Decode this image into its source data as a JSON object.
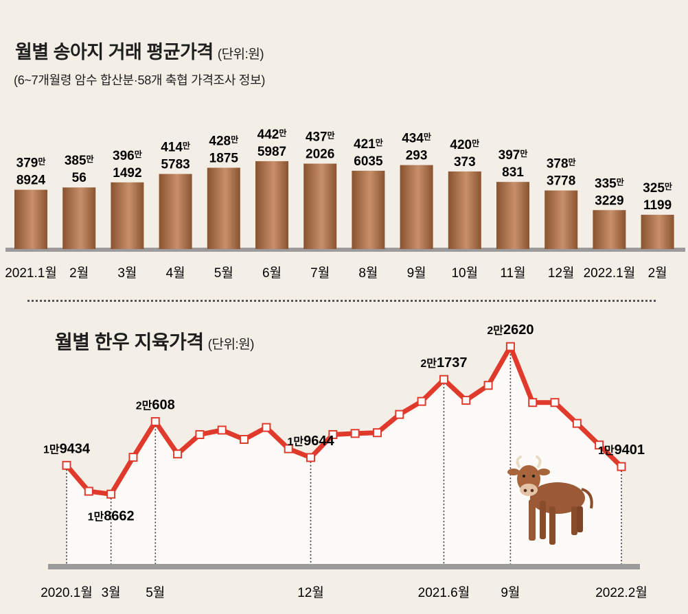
{
  "bar_section": {
    "title": "월별 송아지 거래 평균가격",
    "unit": "(단위:원)",
    "subtitle": "(6~7개월령 암수 합산분·58개 축협 가격조사 정보)"
  },
  "line_section": {
    "title": "월별 한우 지육가격",
    "unit": "(단위:원)"
  },
  "colors": {
    "background": "#f3eee6",
    "bar_light": "#c7906a",
    "bar_dark": "#8a5330",
    "line": "#e03a2c",
    "baseline": "#9b9b9b"
  },
  "icons": [
    "cow-icon"
  ],
  "chart_data": [
    {
      "type": "bar",
      "title": "월별 송아지 거래 평균가격",
      "unit": "원",
      "categories": [
        "2021.1월",
        "2월",
        "3월",
        "4월",
        "5월",
        "6월",
        "7월",
        "8월",
        "9월",
        "10월",
        "11월",
        "12월",
        "2022.1월",
        "2월"
      ],
      "values": [
        3798924,
        3850056,
        3961492,
        4145783,
        4281875,
        4425987,
        4372026,
        4216035,
        4340293,
        4200373,
        3970831,
        3783778,
        3353229,
        3251199
      ],
      "labels_top": [
        "379만",
        "385만",
        "396만",
        "414만",
        "428만",
        "442만",
        "437만",
        "421만",
        "434만",
        "420만",
        "397만",
        "378만",
        "335만",
        "325만"
      ],
      "labels_bottom": [
        "8924",
        "56",
        "1492",
        "5783",
        "1875",
        "5987",
        "2026",
        "6035",
        "293",
        "373",
        "831",
        "3778",
        "3229",
        "1199"
      ],
      "ylim": [
        2500000,
        4500000
      ]
    },
    {
      "type": "line",
      "title": "월별 한우 지육가격",
      "unit": "원",
      "x": [
        "2020.1",
        "2020.2",
        "2020.3",
        "2020.4",
        "2020.5",
        "2020.6",
        "2020.7",
        "2020.8",
        "2020.9",
        "2020.10",
        "2020.11",
        "2020.12",
        "2021.1",
        "2021.2",
        "2021.3",
        "2021.4",
        "2021.5",
        "2021.6",
        "2021.7",
        "2021.8",
        "2021.9",
        "2021.10",
        "2021.11",
        "2021.12",
        "2022.1",
        "2022.2"
      ],
      "values": [
        19434,
        18740,
        18662,
        19650,
        20608,
        19740,
        20260,
        20380,
        20130,
        20450,
        19880,
        19644,
        20260,
        20290,
        20310,
        20800,
        21150,
        21737,
        21180,
        21580,
        22620,
        21120,
        21120,
        20560,
        19980,
        19401
      ],
      "x_tick_labels": [
        {
          "index": 0,
          "label": "2020.1월"
        },
        {
          "index": 2,
          "label": "3월"
        },
        {
          "index": 4,
          "label": "5월"
        },
        {
          "index": 11,
          "label": "12월"
        },
        {
          "index": 17,
          "label": "2021.6월"
        },
        {
          "index": 20,
          "label": "9월"
        },
        {
          "index": 25,
          "label": "2022.2월"
        }
      ],
      "annotations": [
        {
          "index": 0,
          "prefix": "1만",
          "rest": "9434",
          "pos": "above"
        },
        {
          "index": 2,
          "prefix": "1만",
          "rest": "8662",
          "pos": "below"
        },
        {
          "index": 4,
          "prefix": "2만",
          "rest": "608",
          "pos": "above"
        },
        {
          "index": 11,
          "prefix": "1만",
          "rest": "9644",
          "pos": "above"
        },
        {
          "index": 17,
          "prefix": "2만",
          "rest": "1737",
          "pos": "above"
        },
        {
          "index": 20,
          "prefix": "2만",
          "rest": "2620",
          "pos": "above"
        },
        {
          "index": 25,
          "prefix": "1만",
          "rest": "9401",
          "pos": "above"
        }
      ],
      "ylim": [
        17600,
        22900
      ]
    }
  ]
}
